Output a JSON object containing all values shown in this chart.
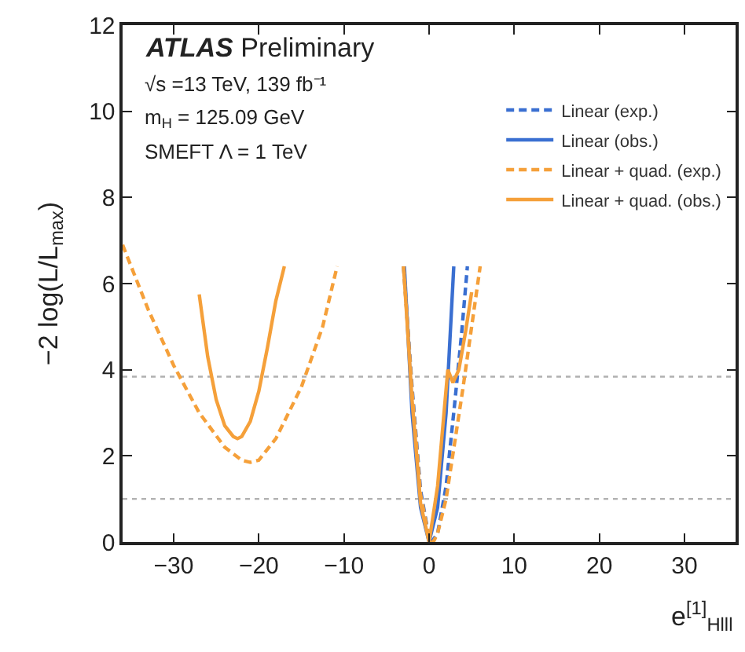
{
  "chart_data": {
    "type": "line",
    "xlabel": "e$^{[1]}$$_{Hlll}$",
    "ylabel": "−2 log(L/L$_{max}$)",
    "xlim": [
      -36,
      36
    ],
    "ylim": [
      0,
      12
    ],
    "xticks": [
      -30,
      -20,
      -10,
      0,
      10,
      20,
      30
    ],
    "yticks": [
      0,
      2,
      4,
      6,
      8,
      10,
      12
    ],
    "grid": false,
    "legend": "top right",
    "marker": "none",
    "series": [
      {
        "name": "Linear (exp.)",
        "color": "#3a6fd1",
        "line_style": "dashed",
        "x": [
          -3.0,
          -2.0,
          -1.0,
          0.0,
          0.3,
          1.0,
          2.0,
          3.0,
          3.8,
          4.5
        ],
        "values": [
          6.4,
          3.6,
          1.2,
          0.1,
          0.0,
          0.2,
          1.3,
          3.2,
          4.8,
          6.4
        ]
      },
      {
        "name": "Linear (obs.)",
        "color": "#3a6fd1",
        "line_style": "solid",
        "x": [
          -2.9,
          -2.0,
          -1.0,
          0.0,
          1.0,
          2.0,
          2.9
        ],
        "values": [
          6.4,
          3.0,
          0.8,
          0.0,
          0.8,
          3.0,
          6.4
        ]
      },
      {
        "name": "Linear + quad. (exp.)",
        "color": "#f5a03a",
        "line_style": "dashed",
        "x": [
          -36,
          -33,
          -30,
          -27,
          -24,
          -22,
          -21,
          -20,
          -18,
          -15,
          -12.5,
          -10.8,
          null,
          -3.0,
          -2.0,
          -1.0,
          0.0,
          0.5,
          1.0,
          2.0,
          3.0,
          4.0,
          5.0,
          6.0
        ],
        "values": [
          6.9,
          5.4,
          4.1,
          3.0,
          2.2,
          1.9,
          1.85,
          1.9,
          2.4,
          3.6,
          5.0,
          6.4,
          null,
          6.4,
          3.5,
          1.1,
          0.1,
          0.0,
          0.2,
          1.0,
          2.3,
          3.6,
          5.0,
          6.4
        ]
      },
      {
        "name": "Linear + quad. (obs.)",
        "color": "#f5a03a",
        "line_style": "solid",
        "x": [
          -27.0,
          -26.0,
          -25.0,
          -24.0,
          -23.0,
          -22.5,
          -22.0,
          -21.0,
          -20.0,
          -19.0,
          -18.0,
          -17.0,
          null,
          -3.0,
          -2.0,
          -1.0,
          0.0,
          1.0,
          2.2,
          2.8,
          3.5,
          4.3,
          5.0
        ],
        "values": [
          5.75,
          4.3,
          3.3,
          2.7,
          2.45,
          2.4,
          2.45,
          2.8,
          3.5,
          4.5,
          5.6,
          6.4,
          null,
          6.4,
          3.3,
          0.9,
          0.0,
          1.3,
          4.0,
          3.7,
          4.0,
          4.9,
          5.8
        ]
      }
    ],
    "ref_lines": [
      {
        "axis": "y",
        "value": 3.84,
        "color": "#b0b0b0",
        "line_style": "dotted"
      },
      {
        "axis": "y",
        "value": 1,
        "color": "#b0b0b0",
        "line_style": "dotted"
      }
    ],
    "annotations": [
      "ATLAS Preliminary",
      "√s =13 TeV, 139 fb⁻¹",
      "m$_{H}$ = 125.09 GeV",
      "SMEFT Λ = 1 TeV"
    ]
  }
}
